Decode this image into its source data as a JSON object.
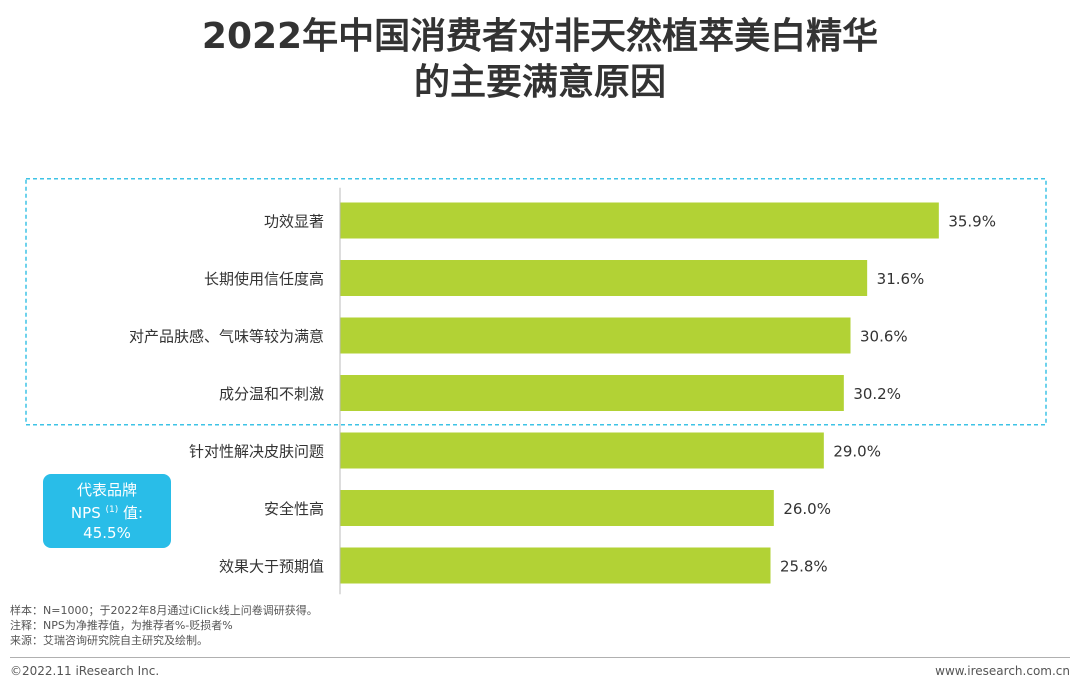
{
  "title": {
    "line1": "2022年中国消费者对非天然植萃美白精华",
    "line2": "的主要满意原因"
  },
  "chart_data": {
    "type": "bar",
    "orientation": "horizontal",
    "categories": [
      "功效显著",
      "长期使用信任度高",
      "对产品肤感、气味等较为满意",
      "成分温和不刺激",
      "针对性解决皮肤问题",
      "安全性高",
      "效果大于预期值"
    ],
    "values": [
      35.9,
      31.6,
      30.6,
      30.2,
      29.0,
      26.0,
      25.8
    ],
    "value_labels": [
      "35.9%",
      "31.6%",
      "30.6%",
      "30.2%",
      "29.0%",
      "26.0%",
      "25.8%"
    ],
    "unit": "%",
    "xlim": [
      0,
      40
    ],
    "highlighted_categories": [
      "功效显著",
      "长期使用信任度高",
      "对产品肤感、气味等较为满意",
      "成分温和不刺激"
    ],
    "bar_color": "#b2d235",
    "highlight_border_color": "#3ec3e6",
    "grid": false,
    "legend": "none"
  },
  "nps": {
    "line1": "代表品牌",
    "label": "NPS",
    "note_mark": "(1)",
    "suffix": " 值:",
    "value": "45.5%",
    "color": "#29bde8"
  },
  "notes": {
    "sample": "样本：N=1000；于2022年8月通过iClick线上问卷调研获得。",
    "annotation": "注释：NPS为净推荐值，为推荐者%-贬损者%",
    "source": "来源：艾瑞咨询研究院自主研究及绘制。"
  },
  "footer": {
    "copyright": "©2022.11 iResearch Inc.",
    "website": "www.iresearch.com.cn"
  }
}
